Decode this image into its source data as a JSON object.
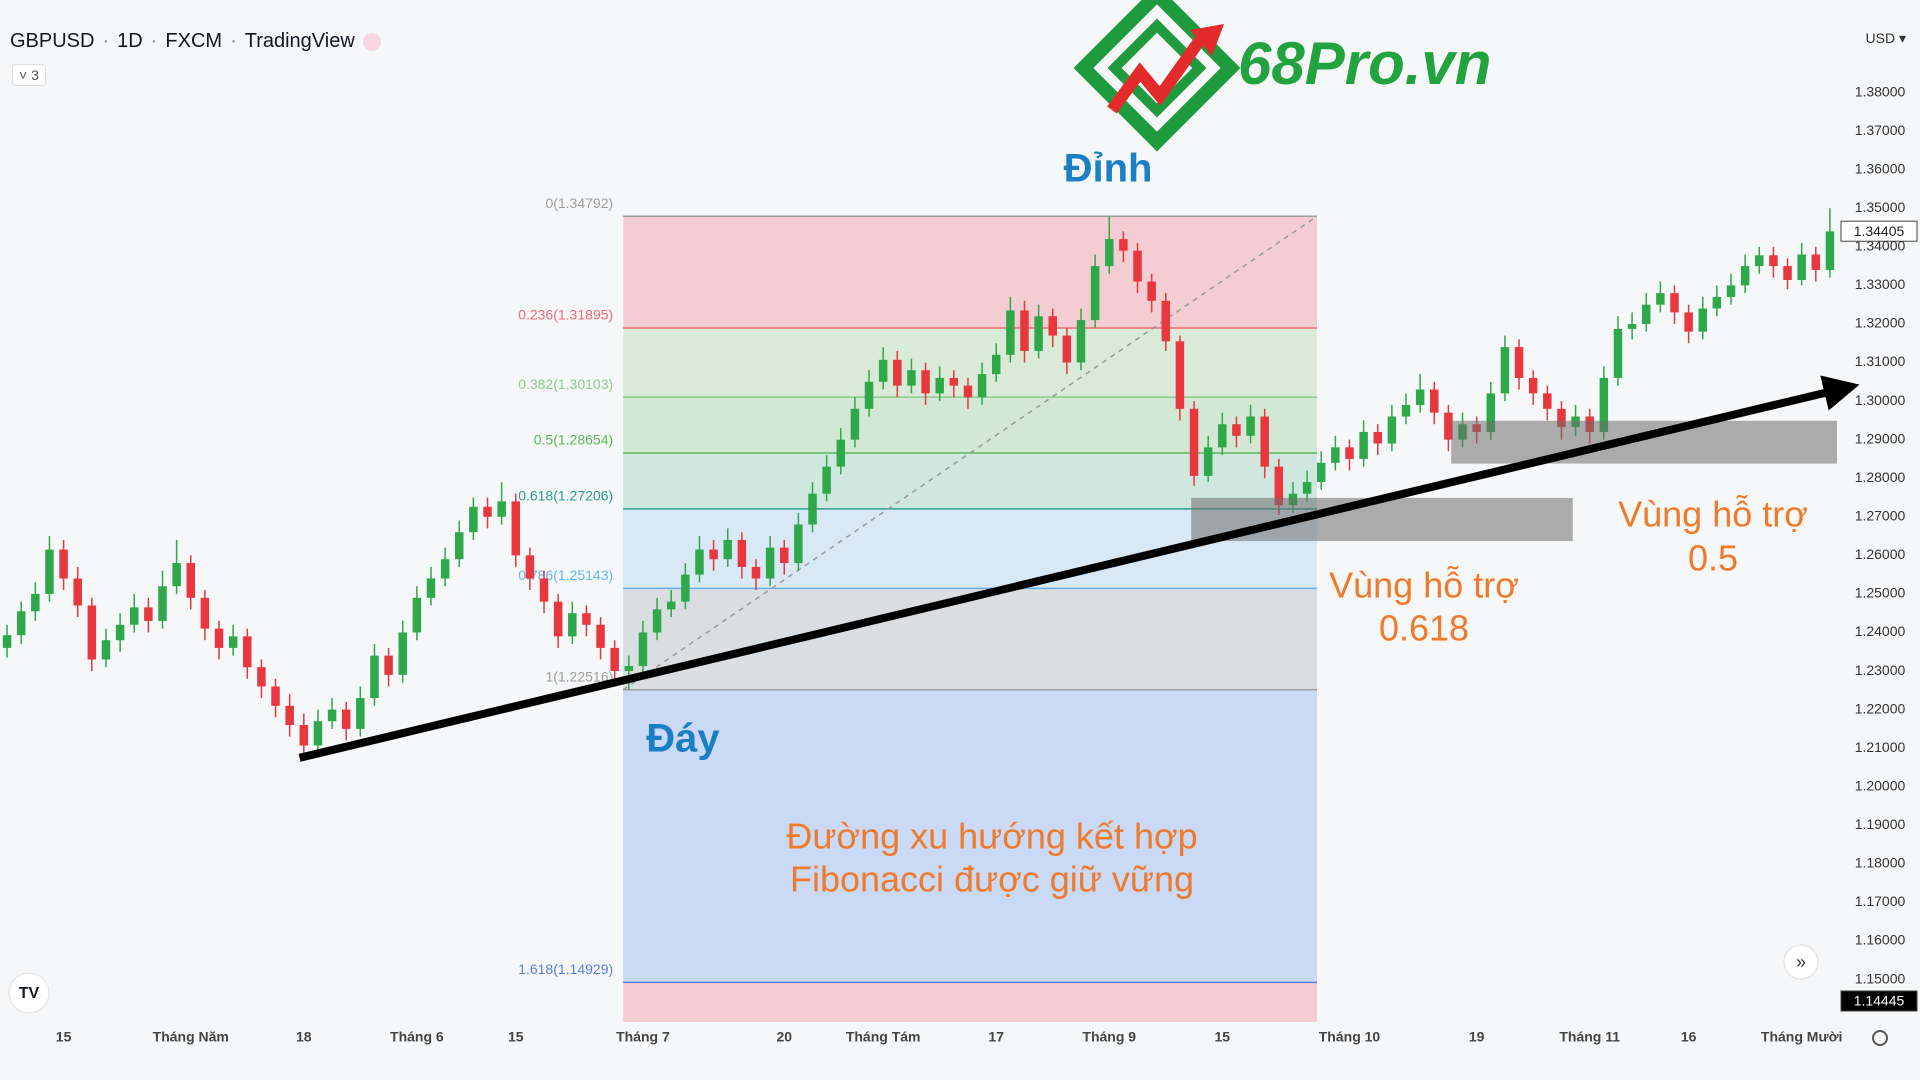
{
  "header": {
    "symbol": "GBPUSD",
    "interval": "1D",
    "exchange": "FXCM",
    "source": "TradingView",
    "indicator_count": 3,
    "currency": "USD"
  },
  "logo": "68Pro.vn",
  "chart_data": {
    "type": "candlestick",
    "up_color": "#2ea84a",
    "down_color": "#e8373f",
    "xlim": [
      -0.5,
      129.5
    ],
    "ylim": [
      1.139,
      1.404
    ],
    "grid": false,
    "xticks": [
      {
        "value": 4,
        "label": "15"
      },
      {
        "value": 13,
        "label": "Tháng Năm"
      },
      {
        "value": 21,
        "label": "18"
      },
      {
        "value": 29,
        "label": "Tháng 6"
      },
      {
        "value": 36,
        "label": "15"
      },
      {
        "value": 45,
        "label": "Tháng 7"
      },
      {
        "value": 55,
        "label": "20"
      },
      {
        "value": 62,
        "label": "Tháng Tám"
      },
      {
        "value": 70,
        "label": "17"
      },
      {
        "value": 78,
        "label": "Tháng 9"
      },
      {
        "value": 86,
        "label": "15"
      },
      {
        "value": 95,
        "label": "Tháng 10"
      },
      {
        "value": 104,
        "label": "19"
      },
      {
        "value": 112,
        "label": "Tháng 11"
      },
      {
        "value": 119,
        "label": "16"
      },
      {
        "value": 127,
        "label": "Tháng Mười"
      }
    ],
    "yticks": [
      {
        "value": 1.15,
        "label": "1.15000"
      },
      {
        "value": 1.16,
        "label": "1.16000"
      },
      {
        "value": 1.17,
        "label": "1.17000"
      },
      {
        "value": 1.18,
        "label": "1.18000"
      },
      {
        "value": 1.19,
        "label": "1.19000"
      },
      {
        "value": 1.2,
        "label": "1.20000"
      },
      {
        "value": 1.21,
        "label": "1.21000"
      },
      {
        "value": 1.22,
        "label": "1.22000"
      },
      {
        "value": 1.23,
        "label": "1.23000"
      },
      {
        "value": 1.24,
        "label": "1.24000"
      },
      {
        "value": 1.25,
        "label": "1.25000"
      },
      {
        "value": 1.26,
        "label": "1.26000"
      },
      {
        "value": 1.27,
        "label": "1.27000"
      },
      {
        "value": 1.28,
        "label": "1.28000"
      },
      {
        "value": 1.29,
        "label": "1.29000"
      },
      {
        "value": 1.3,
        "label": "1.30000"
      },
      {
        "value": 1.31,
        "label": "1.31000"
      },
      {
        "value": 1.32,
        "label": "1.32000"
      },
      {
        "value": 1.33,
        "label": "1.33000"
      },
      {
        "value": 1.34,
        "label": "1.34000"
      },
      {
        "value": 1.35,
        "label": "1.35000"
      },
      {
        "value": 1.36,
        "label": "1.36000"
      },
      {
        "value": 1.37,
        "label": "1.37000"
      },
      {
        "value": 1.38,
        "label": "1.38000"
      }
    ],
    "price_tags": [
      {
        "value": 1.34405,
        "label": "1.34405",
        "color": "#ffffff"
      },
      {
        "value": 1.14445,
        "label": "1.14445",
        "color": "#000000"
      }
    ],
    "ohlc": [
      [
        1.236,
        1.242,
        1.2335,
        1.2393
      ],
      [
        1.2393,
        1.248,
        1.237,
        1.2455
      ],
      [
        1.2455,
        1.253,
        1.243,
        1.25
      ],
      [
        1.25,
        1.265,
        1.248,
        1.2615
      ],
      [
        1.2615,
        1.264,
        1.251,
        1.254
      ],
      [
        1.254,
        1.257,
        1.244,
        1.247
      ],
      [
        1.247,
        1.249,
        1.23,
        1.233
      ],
      [
        1.233,
        1.241,
        1.231,
        1.238
      ],
      [
        1.238,
        1.245,
        1.235,
        1.242
      ],
      [
        1.242,
        1.25,
        1.24,
        1.2465
      ],
      [
        1.2465,
        1.249,
        1.24,
        1.243
      ],
      [
        1.243,
        1.256,
        1.241,
        1.252
      ],
      [
        1.252,
        1.264,
        1.25,
        1.258
      ],
      [
        1.258,
        1.26,
        1.246,
        1.249
      ],
      [
        1.249,
        1.251,
        1.238,
        1.241
      ],
      [
        1.241,
        1.243,
        1.233,
        1.236
      ],
      [
        1.236,
        1.242,
        1.234,
        1.239
      ],
      [
        1.239,
        1.241,
        1.228,
        1.231
      ],
      [
        1.231,
        1.233,
        1.223,
        1.226
      ],
      [
        1.226,
        1.228,
        1.218,
        1.221
      ],
      [
        1.221,
        1.224,
        1.213,
        1.216
      ],
      [
        1.216,
        1.219,
        1.208,
        1.2107
      ],
      [
        1.2107,
        1.22,
        1.209,
        1.217
      ],
      [
        1.217,
        1.223,
        1.215,
        1.22
      ],
      [
        1.22,
        1.222,
        1.212,
        1.215
      ],
      [
        1.215,
        1.226,
        1.213,
        1.223
      ],
      [
        1.223,
        1.237,
        1.221,
        1.234
      ],
      [
        1.234,
        1.236,
        1.226,
        1.229
      ],
      [
        1.229,
        1.243,
        1.227,
        1.24
      ],
      [
        1.24,
        1.252,
        1.238,
        1.249
      ],
      [
        1.249,
        1.257,
        1.247,
        1.254
      ],
      [
        1.254,
        1.262,
        1.252,
        1.259
      ],
      [
        1.259,
        1.269,
        1.257,
        1.266
      ],
      [
        1.266,
        1.275,
        1.264,
        1.2726
      ],
      [
        1.2726,
        1.275,
        1.267,
        1.27
      ],
      [
        1.27,
        1.279,
        1.268,
        1.274
      ],
      [
        1.274,
        1.276,
        1.257,
        1.26
      ],
      [
        1.26,
        1.262,
        1.251,
        1.254
      ],
      [
        1.254,
        1.256,
        1.245,
        1.248
      ],
      [
        1.248,
        1.25,
        1.236,
        1.239
      ],
      [
        1.239,
        1.248,
        1.237,
        1.245
      ],
      [
        1.245,
        1.247,
        1.239,
        1.242
      ],
      [
        1.242,
        1.244,
        1.233,
        1.236
      ],
      [
        1.236,
        1.238,
        1.227,
        1.23
      ],
      [
        1.23,
        1.234,
        1.2252,
        1.2313
      ],
      [
        1.2313,
        1.243,
        1.229,
        1.24
      ],
      [
        1.24,
        1.249,
        1.238,
        1.246
      ],
      [
        1.246,
        1.251,
        1.244,
        1.248
      ],
      [
        1.248,
        1.258,
        1.246,
        1.255
      ],
      [
        1.255,
        1.265,
        1.253,
        1.2615
      ],
      [
        1.2615,
        1.264,
        1.256,
        1.259
      ],
      [
        1.259,
        1.267,
        1.257,
        1.264
      ],
      [
        1.264,
        1.266,
        1.254,
        1.257
      ],
      [
        1.257,
        1.259,
        1.251,
        1.254
      ],
      [
        1.254,
        1.265,
        1.252,
        1.262
      ],
      [
        1.262,
        1.264,
        1.255,
        1.258
      ],
      [
        1.258,
        1.271,
        1.256,
        1.268
      ],
      [
        1.268,
        1.279,
        1.266,
        1.276
      ],
      [
        1.276,
        1.286,
        1.274,
        1.283
      ],
      [
        1.283,
        1.293,
        1.281,
        1.29
      ],
      [
        1.29,
        1.301,
        1.288,
        1.298
      ],
      [
        1.298,
        1.308,
        1.296,
        1.305
      ],
      [
        1.305,
        1.314,
        1.303,
        1.3107
      ],
      [
        1.3107,
        1.313,
        1.301,
        1.304
      ],
      [
        1.304,
        1.311,
        1.302,
        1.308
      ],
      [
        1.308,
        1.31,
        1.299,
        1.302
      ],
      [
        1.302,
        1.309,
        1.3,
        1.306
      ],
      [
        1.306,
        1.308,
        1.301,
        1.304
      ],
      [
        1.304,
        1.306,
        1.298,
        1.301
      ],
      [
        1.301,
        1.31,
        1.299,
        1.307
      ],
      [
        1.307,
        1.315,
        1.305,
        1.312
      ],
      [
        1.312,
        1.327,
        1.31,
        1.3235
      ],
      [
        1.3235,
        1.326,
        1.31,
        1.313
      ],
      [
        1.313,
        1.325,
        1.311,
        1.322
      ],
      [
        1.322,
        1.324,
        1.314,
        1.317
      ],
      [
        1.317,
        1.319,
        1.307,
        1.31
      ],
      [
        1.31,
        1.324,
        1.308,
        1.321
      ],
      [
        1.321,
        1.338,
        1.319,
        1.335
      ],
      [
        1.335,
        1.3479,
        1.333,
        1.342
      ],
      [
        1.342,
        1.344,
        1.336,
        1.339
      ],
      [
        1.339,
        1.341,
        1.328,
        1.331
      ],
      [
        1.331,
        1.333,
        1.323,
        1.326
      ],
      [
        1.326,
        1.328,
        1.313,
        1.3155
      ],
      [
        1.3155,
        1.317,
        1.295,
        1.298
      ],
      [
        1.298,
        1.3,
        1.278,
        1.2806
      ],
      [
        1.2806,
        1.291,
        1.279,
        1.288
      ],
      [
        1.288,
        1.297,
        1.286,
        1.294
      ],
      [
        1.294,
        1.296,
        1.288,
        1.291
      ],
      [
        1.291,
        1.299,
        1.289,
        1.296
      ],
      [
        1.296,
        1.298,
        1.28,
        1.283
      ],
      [
        1.283,
        1.285,
        1.2705,
        1.273
      ],
      [
        1.273,
        1.279,
        1.271,
        1.276
      ],
      [
        1.276,
        1.282,
        1.274,
        1.279
      ],
      [
        1.279,
        1.287,
        1.277,
        1.284
      ],
      [
        1.284,
        1.291,
        1.282,
        1.288
      ],
      [
        1.288,
        1.29,
        1.282,
        1.285
      ],
      [
        1.285,
        1.295,
        1.283,
        1.292
      ],
      [
        1.292,
        1.294,
        1.286,
        1.289
      ],
      [
        1.289,
        1.299,
        1.287,
        1.296
      ],
      [
        1.296,
        1.302,
        1.294,
        1.299
      ],
      [
        1.299,
        1.307,
        1.297,
        1.303
      ],
      [
        1.303,
        1.305,
        1.294,
        1.297
      ],
      [
        1.297,
        1.299,
        1.287,
        1.29
      ],
      [
        1.29,
        1.297,
        1.288,
        1.294
      ],
      [
        1.294,
        1.296,
        1.289,
        1.292
      ],
      [
        1.292,
        1.305,
        1.29,
        1.302
      ],
      [
        1.302,
        1.317,
        1.3,
        1.314
      ],
      [
        1.314,
        1.316,
        1.303,
        1.306
      ],
      [
        1.306,
        1.308,
        1.299,
        1.302
      ],
      [
        1.302,
        1.304,
        1.295,
        1.298
      ],
      [
        1.298,
        1.3,
        1.29,
        1.2933
      ],
      [
        1.2933,
        1.299,
        1.291,
        1.296
      ],
      [
        1.296,
        1.298,
        1.289,
        1.292
      ],
      [
        1.292,
        1.309,
        1.29,
        1.306
      ],
      [
        1.306,
        1.322,
        1.304,
        1.3187
      ],
      [
        1.3187,
        1.323,
        1.316,
        1.32
      ],
      [
        1.32,
        1.328,
        1.318,
        1.325
      ],
      [
        1.325,
        1.331,
        1.323,
        1.328
      ],
      [
        1.328,
        1.33,
        1.32,
        1.323
      ],
      [
        1.323,
        1.325,
        1.315,
        1.318
      ],
      [
        1.318,
        1.327,
        1.316,
        1.324
      ],
      [
        1.324,
        1.33,
        1.322,
        1.327
      ],
      [
        1.327,
        1.333,
        1.325,
        1.33
      ],
      [
        1.33,
        1.338,
        1.328,
        1.335
      ],
      [
        1.335,
        1.34,
        1.333,
        1.3378
      ],
      [
        1.3378,
        1.34,
        1.332,
        1.335
      ],
      [
        1.335,
        1.337,
        1.329,
        1.3314
      ],
      [
        1.3314,
        1.341,
        1.33,
        1.338
      ],
      [
        1.338,
        1.34,
        1.331,
        1.334
      ],
      [
        1.334,
        1.35,
        1.332,
        1.344
      ]
    ],
    "fibonacci": {
      "x": [
        43.6,
        92.7
      ],
      "levels": [
        {
          "value": 1.34792,
          "label": "0(1.34792)",
          "color": "#9e9e9e",
          "fill": "#f3cdd2"
        },
        {
          "value": 1.31895,
          "label": "0.236(1.31895)",
          "color": "#ef6b73",
          "fill": "#d9ead6"
        },
        {
          "value": 1.30103,
          "label": "0.382(1.30103)",
          "color": "#8fca8f",
          "fill": "#d3e8d2"
        },
        {
          "value": 1.28654,
          "label": "0.5(1.28654)",
          "color": "#5cb85c",
          "fill": "#cfe7df"
        },
        {
          "value": 1.27206,
          "label": "0.618(1.27206)",
          "color": "#2a9d8f",
          "fill": "#d8e8f5"
        },
        {
          "value": 1.25143,
          "label": "0.786(1.25143)",
          "color": "#64b5f6",
          "fill": "#dadee1"
        },
        {
          "value": 1.22516,
          "label": "1(1.22516)",
          "color": "#9e9e9e",
          "fill": "#cad9f6"
        },
        {
          "value": 1.14929,
          "label": "1.618(1.14929)",
          "color": "#5b7fe0",
          "fill": "#f3cdd2"
        }
      ]
    },
    "zones": [
      {
        "x": [
          83.8,
          110.8
        ],
        "y": [
          1.2637,
          1.2749
        ]
      },
      {
        "x": [
          102.2,
          129.5
        ],
        "y": [
          1.2838,
          1.2949
        ]
      }
    ],
    "trendline": {
      "x": [
        20.7,
        130.1
      ],
      "y": [
        1.2075,
        1.3034
      ]
    },
    "annotations": [
      "Đỉnh",
      "Đáy",
      "Đường xu hướng kết hợp",
      "Fibonacci được giữ vững",
      "Vùng hỗ trợ",
      "0.618",
      "Vùng hỗ trợ",
      "0.5"
    ]
  }
}
